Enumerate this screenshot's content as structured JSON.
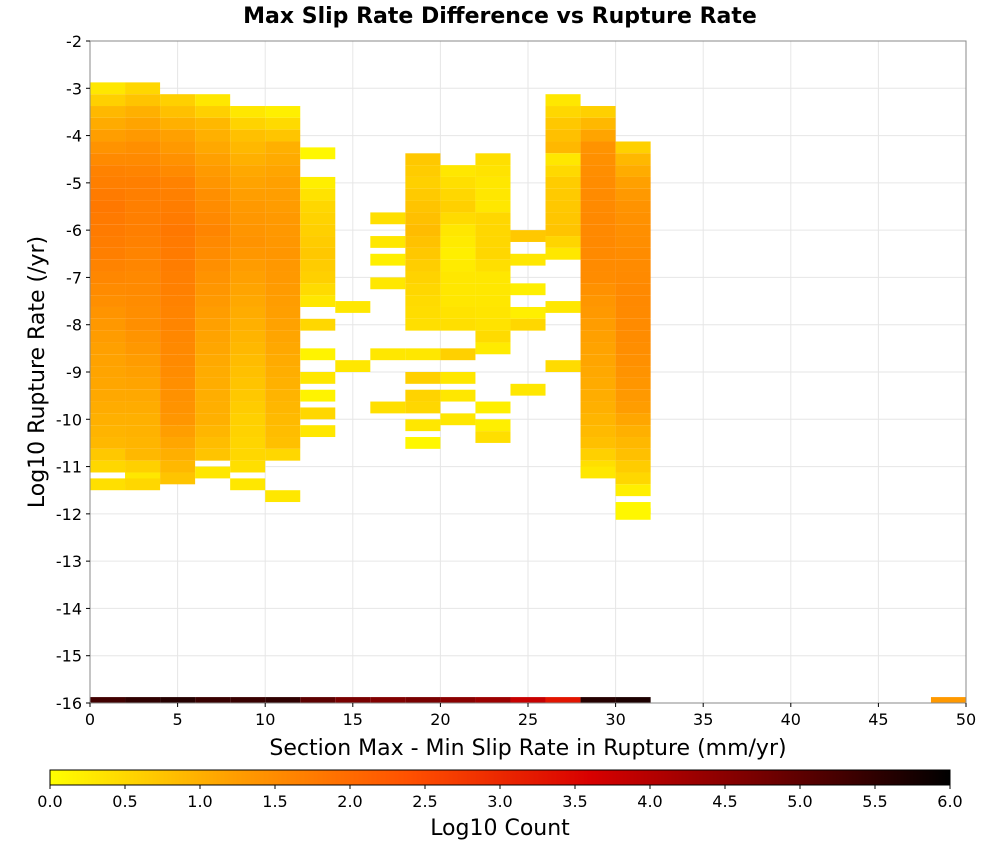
{
  "chart_data": {
    "type": "heatmap",
    "title": "Max Slip Rate Difference vs Rupture Rate",
    "xlabel": "Section Max - Min Slip Rate in Rupture (mm/yr)",
    "ylabel": "Log10 Rupture Rate (/yr)",
    "xlim": [
      0,
      50
    ],
    "ylim": [
      -16,
      -2
    ],
    "x_ticks": [
      "0",
      "5",
      "10",
      "15",
      "20",
      "25",
      "30",
      "35",
      "40",
      "45",
      "50"
    ],
    "y_ticks": [
      "-2",
      "-3",
      "-4",
      "-5",
      "-6",
      "-7",
      "-8",
      "-9",
      "-10",
      "-11",
      "-12",
      "-13",
      "-14",
      "-15",
      "-16"
    ],
    "grid": true,
    "x_bin_width": 2,
    "y_bin_height": 0.25,
    "colorbar": {
      "label": "Log10 Count",
      "range": [
        0,
        6
      ],
      "ticks": [
        "0.0",
        "0.5",
        "1.0",
        "1.5",
        "2.0",
        "2.5",
        "3.0",
        "3.5",
        "4.0",
        "4.5",
        "5.0",
        "5.5",
        "6.0"
      ],
      "colors": [
        "#ffff00",
        "#ffa000",
        "#ff5000",
        "#d80000",
        "#700000",
        "#000000"
      ]
    },
    "bin_rows": [
      {
        "x": 1,
        "profile": [
          [
            -3.0,
            0.3
          ],
          [
            -3.5,
            0.9
          ],
          [
            -4.25,
            1.4
          ],
          [
            -4.75,
            1.65
          ],
          [
            -5.5,
            1.8
          ],
          [
            -6.5,
            1.7
          ],
          [
            -7.5,
            1.45
          ],
          [
            -8.5,
            1.2
          ],
          [
            -9.5,
            1.1
          ],
          [
            -10.5,
            0.9
          ],
          [
            -11.0,
            0.5
          ]
        ],
        "extras": [
          [
            -11.375,
            0.4
          ]
        ]
      },
      {
        "x": 3,
        "profile": [
          [
            -3.0,
            0.5
          ],
          [
            -3.5,
            1.0
          ],
          [
            -4.25,
            1.45
          ],
          [
            -5.0,
            1.7
          ],
          [
            -6.0,
            1.7
          ],
          [
            -7.0,
            1.55
          ],
          [
            -8.0,
            1.45
          ],
          [
            -9.0,
            1.2
          ],
          [
            -10.0,
            1.0
          ],
          [
            -10.75,
            0.9
          ],
          [
            -11.25,
            0.3
          ]
        ],
        "extras": [
          [
            -11.375,
            0.5
          ]
        ]
      },
      {
        "x": 5,
        "profile": [
          [
            -3.25,
            0.6
          ],
          [
            -4.0,
            1.2
          ],
          [
            -5.0,
            1.65
          ],
          [
            -6.0,
            1.8
          ],
          [
            -7.0,
            1.7
          ],
          [
            -8.0,
            1.6
          ],
          [
            -9.0,
            1.5
          ],
          [
            -10.0,
            1.35
          ],
          [
            -11.0,
            0.9
          ],
          [
            -11.25,
            0.75
          ]
        ],
        "extras": []
      },
      {
        "x": 7,
        "profile": [
          [
            -3.25,
            0.3
          ],
          [
            -3.75,
            0.9
          ],
          [
            -4.5,
            1.2
          ],
          [
            -5.25,
            1.45
          ],
          [
            -6.0,
            1.6
          ],
          [
            -7.0,
            1.4
          ],
          [
            -8.0,
            1.2
          ],
          [
            -9.0,
            1.05
          ],
          [
            -10.0,
            1.0
          ],
          [
            -10.75,
            0.75
          ]
        ],
        "extras": [
          [
            -11.125,
            0.3
          ]
        ]
      },
      {
        "x": 9,
        "profile": [
          [
            -3.5,
            0.3
          ],
          [
            -4.0,
            0.8
          ],
          [
            -4.75,
            1.1
          ],
          [
            -5.5,
            1.3
          ],
          [
            -6.25,
            1.4
          ],
          [
            -7.0,
            1.2
          ],
          [
            -8.0,
            1.0
          ],
          [
            -9.0,
            0.8
          ],
          [
            -10.0,
            0.6
          ],
          [
            -10.75,
            0.5
          ],
          [
            -11.0,
            0.4
          ]
        ],
        "extras": [
          [
            -11.375,
            0.3
          ]
        ]
      },
      {
        "x": 11,
        "profile": [
          [
            -3.5,
            0.2
          ],
          [
            -4.25,
            1.0
          ],
          [
            -5.0,
            1.2
          ],
          [
            -5.75,
            1.3
          ],
          [
            -6.5,
            1.35
          ],
          [
            -7.5,
            1.25
          ],
          [
            -8.5,
            1.1
          ],
          [
            -9.5,
            0.95
          ],
          [
            -10.5,
            0.8
          ],
          [
            -10.75,
            0.5
          ]
        ],
        "extras": [
          [
            -11.625,
            0.3
          ]
        ]
      },
      {
        "x": 13,
        "profile": [
          [
            -5.0,
            0.2
          ],
          [
            -5.5,
            0.5
          ],
          [
            -6.5,
            0.7
          ],
          [
            -7.0,
            0.6
          ],
          [
            -7.5,
            0.3
          ]
        ],
        "extras": [
          [
            -4.375,
            0.1
          ],
          [
            -8.0,
            0.5
          ],
          [
            -8.625,
            0.15
          ],
          [
            -9.125,
            0.3
          ],
          [
            -9.5,
            0.15
          ],
          [
            -9.875,
            0.5
          ],
          [
            -10.25,
            0.3
          ]
        ]
      },
      {
        "x": 15,
        "profile": [],
        "extras": [
          [
            -7.625,
            0.3
          ],
          [
            -8.875,
            0.3
          ]
        ]
      },
      {
        "x": 17,
        "profile": [],
        "extras": [
          [
            -5.75,
            0.4
          ],
          [
            -6.25,
            0.3
          ],
          [
            -6.625,
            0.2
          ],
          [
            -7.125,
            0.3
          ],
          [
            -8.625,
            0.3
          ],
          [
            -9.75,
            0.4
          ]
        ]
      },
      {
        "x": 19,
        "profile": [
          [
            -4.5,
            0.7
          ],
          [
            -5.0,
            0.6
          ],
          [
            -5.5,
            0.75
          ],
          [
            -6.0,
            0.85
          ],
          [
            -6.5,
            0.7
          ],
          [
            -7.0,
            0.55
          ],
          [
            -7.5,
            0.45
          ],
          [
            -8.0,
            0.4
          ]
        ],
        "extras": [
          [
            -8.625,
            0.3
          ],
          [
            -9.125,
            0.6
          ],
          [
            -9.5,
            0.55
          ],
          [
            -9.75,
            0.5
          ],
          [
            -10.125,
            0.3
          ],
          [
            -10.5,
            0.1
          ]
        ]
      },
      {
        "x": 21,
        "profile": [
          [
            -4.75,
            0.3
          ],
          [
            -5.5,
            0.6
          ],
          [
            -6.0,
            0.3
          ],
          [
            -6.5,
            0.2
          ],
          [
            -7.0,
            0.3
          ],
          [
            -7.5,
            0.3
          ],
          [
            -8.0,
            0.4
          ]
        ],
        "extras": [
          [
            -8.625,
            0.6
          ],
          [
            -9.125,
            0.3
          ],
          [
            -9.5,
            0.3
          ],
          [
            -10.0,
            0.3
          ]
        ]
      },
      {
        "x": 23,
        "profile": [
          [
            -4.5,
            0.4
          ],
          [
            -5.0,
            0.3
          ],
          [
            -5.5,
            0.3
          ],
          [
            -5.75,
            0.5
          ],
          [
            -6.5,
            0.5
          ],
          [
            -7.0,
            0.3
          ],
          [
            -7.5,
            0.3
          ],
          [
            -8.0,
            0.35
          ],
          [
            -8.25,
            0.45
          ],
          [
            -8.5,
            0.25
          ]
        ],
        "extras": [
          [
            -9.75,
            0.2
          ],
          [
            -10.125,
            0.2
          ],
          [
            -10.375,
            0.4
          ]
        ]
      },
      {
        "x": 25,
        "profile": [],
        "extras": [
          [
            -6.125,
            0.7
          ],
          [
            -6.625,
            0.3
          ],
          [
            -7.25,
            0.2
          ],
          [
            -7.75,
            0.2
          ],
          [
            -8.0,
            0.5
          ],
          [
            -9.375,
            0.3
          ]
        ]
      },
      {
        "x": 27,
        "profile": [
          [
            -3.25,
            0.3
          ],
          [
            -3.75,
            0.7
          ],
          [
            -4.25,
            0.9
          ],
          [
            -4.5,
            0.3
          ],
          [
            -5.0,
            0.65
          ],
          [
            -5.5,
            0.7
          ],
          [
            -6.0,
            0.75
          ],
          [
            -6.5,
            0.3
          ]
        ],
        "extras": [
          [
            -7.625,
            0.3
          ],
          [
            -8.875,
            0.45
          ]
        ]
      },
      {
        "x": 29,
        "profile": [
          [
            -3.5,
            0.6
          ],
          [
            -3.75,
            0.9
          ],
          [
            -4.25,
            1.4
          ],
          [
            -5.0,
            1.5
          ],
          [
            -6.0,
            1.55
          ],
          [
            -7.0,
            1.5
          ],
          [
            -7.5,
            1.35
          ],
          [
            -8.25,
            1.2
          ],
          [
            -9.0,
            1.1
          ],
          [
            -9.75,
            1.0
          ],
          [
            -10.5,
            0.8
          ],
          [
            -11.0,
            0.4
          ]
        ],
        "extras": [
          [
            -11.125,
            0.3
          ]
        ]
      },
      {
        "x": 31,
        "profile": [
          [
            -4.25,
            0.6
          ],
          [
            -4.5,
            0.9
          ],
          [
            -5.0,
            1.2
          ],
          [
            -5.5,
            1.4
          ],
          [
            -6.5,
            1.5
          ],
          [
            -7.5,
            1.55
          ],
          [
            -8.25,
            1.5
          ],
          [
            -9.0,
            1.4
          ],
          [
            -9.75,
            1.25
          ],
          [
            -10.25,
            1.0
          ],
          [
            -10.75,
            0.8
          ],
          [
            -11.25,
            0.5
          ],
          [
            -11.5,
            0.2
          ]
        ],
        "extras": [
          [
            -11.875,
            0.1
          ],
          [
            -12.0,
            0.1
          ]
        ]
      }
    ],
    "bottom_row": {
      "y": -16,
      "bins": [
        [
          1,
          5.3
        ],
        [
          3,
          5.5
        ],
        [
          5,
          5.6
        ],
        [
          7,
          5.4
        ],
        [
          9,
          5.4
        ],
        [
          11,
          5.5
        ],
        [
          13,
          5.0
        ],
        [
          15,
          4.7
        ],
        [
          17,
          4.6
        ],
        [
          19,
          4.7
        ],
        [
          21,
          4.5
        ],
        [
          23,
          4.3
        ],
        [
          25,
          3.8
        ],
        [
          27,
          3.3
        ],
        [
          29,
          5.6
        ],
        [
          31,
          5.7
        ],
        [
          49,
          1.3
        ]
      ]
    }
  }
}
